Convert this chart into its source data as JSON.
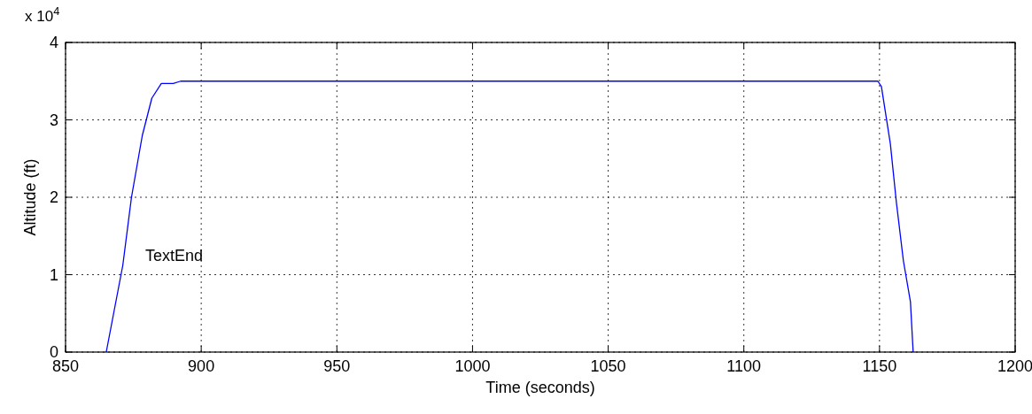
{
  "chart_data": {
    "type": "line",
    "xlabel": "Time (seconds)",
    "ylabel": "Altitude (ft)",
    "annotations": [
      "x 10$^{4}$",
      "TextEnd"
    ],
    "x": [
      865,
      871.1,
      874.3,
      878.3,
      881.8,
      885.3,
      889.7,
      892.4,
      900,
      1000,
      1100,
      1149.4,
      1150.7,
      1154,
      1156.2,
      1158.8,
      1161.4,
      1162.4
    ],
    "series": [
      {
        "color": "#0000ff",
        "values": [
          0,
          1.12,
          2.0,
          2.8,
          3.28,
          3.47,
          3.47,
          3.5,
          3.5,
          3.5,
          3.5,
          3.5,
          3.43,
          2.69,
          1.94,
          1.18,
          0.65,
          0
        ]
      }
    ],
    "xlim": [
      850,
      1200
    ],
    "xticks": [
      850,
      900,
      950,
      1000,
      1050,
      1100,
      1150,
      1200
    ],
    "ylim": [
      0,
      4
    ],
    "yticks": [
      0,
      1,
      2,
      3,
      4
    ],
    "grid": true,
    "line_style": "solid",
    "marker": "none"
  }
}
